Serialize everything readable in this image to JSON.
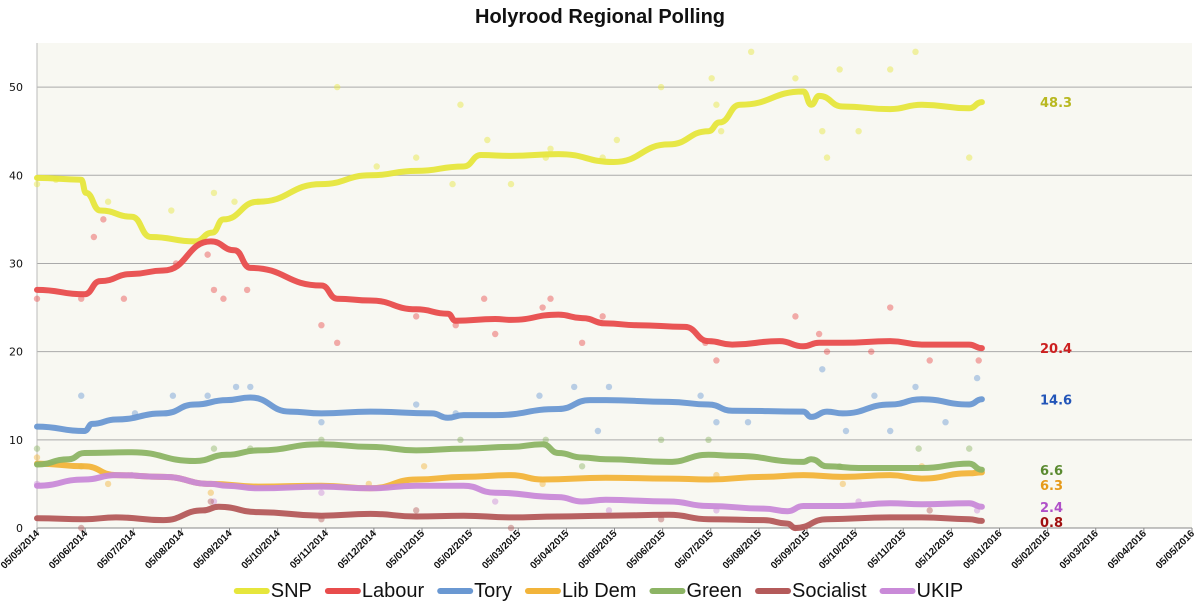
{
  "chart_data": {
    "type": "line",
    "title": "Holyrood Regional Polling",
    "xlabel": "",
    "ylabel": "",
    "ylim": [
      0,
      55
    ],
    "yticks": [
      0,
      10,
      20,
      30,
      40,
      50
    ],
    "xlim": [
      "05/05/2014",
      "05/05/2016"
    ],
    "x_tick_labels": [
      "05/05/2014",
      "05/06/2014",
      "05/07/2014",
      "05/08/2014",
      "05/09/2014",
      "05/10/2014",
      "05/11/2014",
      "05/12/2014",
      "05/01/2015",
      "05/02/2015",
      "05/03/2015",
      "05/04/2015",
      "05/05/2015",
      "05/06/2015",
      "05/07/2015",
      "05/08/2015",
      "05/09/2015",
      "05/10/2015",
      "05/11/2015",
      "05/12/2015",
      "05/01/2016",
      "05/02/2016",
      "05/03/2016",
      "05/04/2016",
      "05/05/2016"
    ],
    "grid": "horizontal",
    "legend_position": "bottom",
    "background": "#f8f8f2",
    "series": [
      {
        "name": "SNP",
        "color": "#e6e63c",
        "end_label": "48.3",
        "end_label_color": "#b8b820",
        "x": [
          "05/05/2014",
          "05/06/2014",
          "05/06/2014",
          "05/07/2014",
          "05/08/2014",
          "05/08/2014",
          "05/09/2014",
          "05/09/2014",
          "05/09/2014",
          "05/10/2014",
          "05/11/2014",
          "05/12/2014",
          "05/01/2015",
          "05/02/2015",
          "05/02/2015",
          "05/03/2015",
          "05/04/2015",
          "05/05/2015",
          "05/06/2015",
          "05/07/2015",
          "05/07/2015",
          "05/08/2015",
          "05/09/2015",
          "05/09/2015",
          "05/09/2015",
          "05/10/2015",
          "05/11/2015",
          "05/12/2015",
          "05/01/2016",
          "05/01/2016"
        ],
        "x_offset_days": [
          0,
          28,
          31,
          40,
          60,
          72,
          100,
          111,
          118,
          140,
          180,
          211,
          240,
          270,
          281,
          300,
          330,
          365,
          400,
          425,
          432,
          445,
          485,
          490,
          495,
          510,
          540,
          560,
          590,
          598
        ],
        "values": [
          39.7,
          39.5,
          38,
          36,
          35.3,
          33,
          32.5,
          33.5,
          35,
          37,
          39,
          40,
          40.5,
          41,
          42.3,
          42.2,
          42.4,
          41.5,
          43.5,
          45,
          46,
          48,
          49.5,
          48,
          49,
          47.8,
          47.5,
          48,
          47.6,
          48.3
        ]
      },
      {
        "name": "Labour",
        "color": "#e84c4c",
        "end_label": "20.4",
        "end_label_color": "#cc1f1f",
        "x_offset_days": [
          0,
          30,
          40,
          60,
          80,
          110,
          125,
          135,
          180,
          190,
          211,
          240,
          260,
          265,
          290,
          300,
          330,
          345,
          360,
          380,
          410,
          425,
          440,
          470,
          485,
          495,
          510,
          540,
          560,
          590,
          598
        ],
        "values": [
          27,
          26.5,
          28,
          28.8,
          29.2,
          32.5,
          31.5,
          29.5,
          27.5,
          26,
          25.8,
          24.8,
          24.3,
          23.5,
          23.7,
          23.6,
          24.2,
          23.8,
          23.2,
          23,
          22.8,
          21.2,
          20.8,
          21.2,
          20.6,
          21,
          21,
          21.2,
          20.8,
          20.8,
          20.4
        ]
      },
      {
        "name": "Tory",
        "color": "#6a98d2",
        "end_label": "14.6",
        "end_label_color": "#2255b8",
        "x_offset_days": [
          0,
          30,
          35,
          50,
          80,
          100,
          120,
          135,
          160,
          180,
          211,
          250,
          260,
          270,
          290,
          330,
          350,
          360,
          400,
          425,
          440,
          485,
          490,
          500,
          510,
          540,
          560,
          590,
          598
        ],
        "values": [
          11.5,
          11,
          11.8,
          12.3,
          13,
          14,
          14.5,
          14.8,
          13.2,
          13,
          13.2,
          13,
          12.5,
          12.8,
          12.8,
          13.5,
          14.5,
          14.5,
          14.3,
          14,
          13.3,
          13.2,
          12.6,
          13.2,
          13,
          14,
          14.6,
          14,
          14.6
        ]
      },
      {
        "name": "Lib Dem",
        "color": "#f2b43a",
        "end_label": "6.3",
        "end_label_color": "#e69a1a",
        "x_offset_days": [
          0,
          30,
          50,
          80,
          110,
          140,
          180,
          211,
          240,
          270,
          300,
          320,
          360,
          400,
          425,
          460,
          485,
          510,
          540,
          560,
          590,
          598
        ],
        "values": [
          7.3,
          7,
          6,
          5.8,
          5,
          4.7,
          4.8,
          4.5,
          5.5,
          5.8,
          6,
          5.5,
          5.7,
          5.6,
          5.5,
          5.8,
          6,
          5.8,
          6,
          5.6,
          6.2,
          6.3
        ]
      },
      {
        "name": "Green",
        "color": "#8cb464",
        "end_label": "6.6",
        "end_label_color": "#5a8a30",
        "x_offset_days": [
          0,
          20,
          30,
          60,
          100,
          120,
          140,
          180,
          211,
          240,
          270,
          300,
          320,
          330,
          345,
          360,
          400,
          425,
          440,
          485,
          490,
          500,
          520,
          560,
          590,
          598
        ],
        "values": [
          7.2,
          7.8,
          8.5,
          8.6,
          7.6,
          8.3,
          8.8,
          9.5,
          9.2,
          8.8,
          9,
          9.2,
          9.5,
          8.5,
          8,
          7.8,
          7.5,
          8.3,
          8.2,
          7.5,
          7.8,
          7,
          6.8,
          6.8,
          7.3,
          6.6
        ]
      },
      {
        "name": "Socialist",
        "color": "#b45a5a",
        "end_label": "0.8",
        "end_label_color": "#a01010",
        "x_offset_days": [
          0,
          30,
          50,
          80,
          105,
          115,
          140,
          180,
          211,
          240,
          270,
          300,
          330,
          360,
          400,
          425,
          460,
          475,
          480,
          500,
          540,
          560,
          590,
          598
        ],
        "values": [
          1.1,
          1,
          1.2,
          0.9,
          2,
          2.4,
          1.8,
          1.4,
          1.6,
          1.3,
          1.4,
          1.2,
          1.3,
          1.4,
          1.5,
          1,
          0.9,
          0.5,
          0,
          1,
          1.2,
          1.2,
          1,
          0.8
        ]
      },
      {
        "name": "UKIP",
        "color": "#c98ad8",
        "end_label": "2.4",
        "end_label_color": "#b050c8",
        "x_offset_days": [
          0,
          30,
          50,
          80,
          110,
          120,
          140,
          180,
          211,
          240,
          270,
          290,
          330,
          345,
          360,
          400,
          425,
          460,
          475,
          485,
          510,
          540,
          560,
          590,
          598
        ],
        "values": [
          4.8,
          5.5,
          6,
          5.8,
          5,
          4.8,
          4.5,
          4.7,
          4.5,
          4.8,
          4.8,
          4,
          3.5,
          3,
          3.2,
          3,
          2.5,
          2.2,
          1.9,
          2.5,
          2.5,
          2.8,
          2.7,
          2.8,
          2.4
        ]
      }
    ],
    "scatter_points": [
      {
        "series": "SNP",
        "d": 0,
        "v": 39
      },
      {
        "series": "SNP",
        "d": 12,
        "v": 39.5
      },
      {
        "series": "SNP",
        "d": 45,
        "v": 37
      },
      {
        "series": "SNP",
        "d": 85,
        "v": 36
      },
      {
        "series": "SNP",
        "d": 112,
        "v": 38
      },
      {
        "series": "SNP",
        "d": 125,
        "v": 37
      },
      {
        "series": "SNP",
        "d": 140,
        "v": 37
      },
      {
        "series": "SNP",
        "d": 190,
        "v": 50
      },
      {
        "series": "SNP",
        "d": 215,
        "v": 41
      },
      {
        "series": "SNP",
        "d": 240,
        "v": 42
      },
      {
        "series": "SNP",
        "d": 263,
        "v": 39
      },
      {
        "series": "SNP",
        "d": 268,
        "v": 48
      },
      {
        "series": "SNP",
        "d": 285,
        "v": 44
      },
      {
        "series": "SNP",
        "d": 300,
        "v": 39
      },
      {
        "series": "SNP",
        "d": 322,
        "v": 42
      },
      {
        "series": "SNP",
        "d": 325,
        "v": 43
      },
      {
        "series": "SNP",
        "d": 358,
        "v": 42
      },
      {
        "series": "SNP",
        "d": 367,
        "v": 44
      },
      {
        "series": "SNP",
        "d": 395,
        "v": 50
      },
      {
        "series": "SNP",
        "d": 427,
        "v": 51
      },
      {
        "series": "SNP",
        "d": 430,
        "v": 48
      },
      {
        "series": "SNP",
        "d": 433,
        "v": 45
      },
      {
        "series": "SNP",
        "d": 452,
        "v": 54
      },
      {
        "series": "SNP",
        "d": 480,
        "v": 51
      },
      {
        "series": "SNP",
        "d": 497,
        "v": 45
      },
      {
        "series": "SNP",
        "d": 500,
        "v": 42
      },
      {
        "series": "SNP",
        "d": 508,
        "v": 52
      },
      {
        "series": "SNP",
        "d": 520,
        "v": 45
      },
      {
        "series": "SNP",
        "d": 540,
        "v": 52
      },
      {
        "series": "SNP",
        "d": 556,
        "v": 54
      },
      {
        "series": "SNP",
        "d": 590,
        "v": 42
      },
      {
        "series": "Labour",
        "d": 0,
        "v": 26
      },
      {
        "series": "Labour",
        "d": 28,
        "v": 26
      },
      {
        "series": "Labour",
        "d": 36,
        "v": 33
      },
      {
        "series": "Labour",
        "d": 42,
        "v": 35
      },
      {
        "series": "Labour",
        "d": 55,
        "v": 26
      },
      {
        "series": "Labour",
        "d": 88,
        "v": 30
      },
      {
        "series": "Labour",
        "d": 108,
        "v": 31
      },
      {
        "series": "Labour",
        "d": 112,
        "v": 27
      },
      {
        "series": "Labour",
        "d": 118,
        "v": 26
      },
      {
        "series": "Labour",
        "d": 133,
        "v": 27
      },
      {
        "series": "Labour",
        "d": 180,
        "v": 23
      },
      {
        "series": "Labour",
        "d": 190,
        "v": 21
      },
      {
        "series": "Labour",
        "d": 240,
        "v": 24
      },
      {
        "series": "Labour",
        "d": 265,
        "v": 23
      },
      {
        "series": "Labour",
        "d": 283,
        "v": 26
      },
      {
        "series": "Labour",
        "d": 290,
        "v": 22
      },
      {
        "series": "Labour",
        "d": 320,
        "v": 25
      },
      {
        "series": "Labour",
        "d": 325,
        "v": 26
      },
      {
        "series": "Labour",
        "d": 345,
        "v": 21
      },
      {
        "series": "Labour",
        "d": 358,
        "v": 24
      },
      {
        "series": "Labour",
        "d": 423,
        "v": 21
      },
      {
        "series": "Labour",
        "d": 430,
        "v": 19
      },
      {
        "series": "Labour",
        "d": 480,
        "v": 24
      },
      {
        "series": "Labour",
        "d": 495,
        "v": 22
      },
      {
        "series": "Labour",
        "d": 500,
        "v": 20
      },
      {
        "series": "Labour",
        "d": 528,
        "v": 20
      },
      {
        "series": "Labour",
        "d": 540,
        "v": 25
      },
      {
        "series": "Labour",
        "d": 565,
        "v": 19
      },
      {
        "series": "Labour",
        "d": 596,
        "v": 19
      },
      {
        "series": "Tory",
        "d": 28,
        "v": 15
      },
      {
        "series": "Tory",
        "d": 62,
        "v": 13
      },
      {
        "series": "Tory",
        "d": 86,
        "v": 15
      },
      {
        "series": "Tory",
        "d": 108,
        "v": 15
      },
      {
        "series": "Tory",
        "d": 126,
        "v": 16
      },
      {
        "series": "Tory",
        "d": 135,
        "v": 16
      },
      {
        "series": "Tory",
        "d": 180,
        "v": 12
      },
      {
        "series": "Tory",
        "d": 240,
        "v": 14
      },
      {
        "series": "Tory",
        "d": 265,
        "v": 13
      },
      {
        "series": "Tory",
        "d": 318,
        "v": 15
      },
      {
        "series": "Tory",
        "d": 340,
        "v": 16
      },
      {
        "series": "Tory",
        "d": 355,
        "v": 11
      },
      {
        "series": "Tory",
        "d": 362,
        "v": 16
      },
      {
        "series": "Tory",
        "d": 420,
        "v": 15
      },
      {
        "series": "Tory",
        "d": 430,
        "v": 12
      },
      {
        "series": "Tory",
        "d": 450,
        "v": 12
      },
      {
        "series": "Tory",
        "d": 497,
        "v": 18
      },
      {
        "series": "Tory",
        "d": 512,
        "v": 11
      },
      {
        "series": "Tory",
        "d": 530,
        "v": 15
      },
      {
        "series": "Tory",
        "d": 540,
        "v": 11
      },
      {
        "series": "Tory",
        "d": 556,
        "v": 16
      },
      {
        "series": "Tory",
        "d": 575,
        "v": 12
      },
      {
        "series": "Tory",
        "d": 595,
        "v": 17
      },
      {
        "series": "Green",
        "d": 0,
        "v": 9
      },
      {
        "series": "Green",
        "d": 28,
        "v": 7
      },
      {
        "series": "Green",
        "d": 112,
        "v": 9
      },
      {
        "series": "Green",
        "d": 135,
        "v": 9
      },
      {
        "series": "Green",
        "d": 180,
        "v": 10
      },
      {
        "series": "Green",
        "d": 268,
        "v": 10
      },
      {
        "series": "Green",
        "d": 322,
        "v": 10
      },
      {
        "series": "Green",
        "d": 345,
        "v": 7
      },
      {
        "series": "Green",
        "d": 395,
        "v": 10
      },
      {
        "series": "Green",
        "d": 425,
        "v": 10
      },
      {
        "series": "Green",
        "d": 508,
        "v": 7
      },
      {
        "series": "Green",
        "d": 558,
        "v": 9
      },
      {
        "series": "Green",
        "d": 590,
        "v": 9
      },
      {
        "series": "Lib Dem",
        "d": 0,
        "v": 8
      },
      {
        "series": "Lib Dem",
        "d": 45,
        "v": 5
      },
      {
        "series": "Lib Dem",
        "d": 110,
        "v": 4
      },
      {
        "series": "Lib Dem",
        "d": 210,
        "v": 5
      },
      {
        "series": "Lib Dem",
        "d": 245,
        "v": 7
      },
      {
        "series": "Lib Dem",
        "d": 320,
        "v": 5
      },
      {
        "series": "Lib Dem",
        "d": 430,
        "v": 6
      },
      {
        "series": "Lib Dem",
        "d": 510,
        "v": 5
      },
      {
        "series": "Lib Dem",
        "d": 560,
        "v": 7
      },
      {
        "series": "UKIP",
        "d": 0,
        "v": 5
      },
      {
        "series": "UKIP",
        "d": 60,
        "v": 6
      },
      {
        "series": "UKIP",
        "d": 112,
        "v": 3
      },
      {
        "series": "UKIP",
        "d": 180,
        "v": 4
      },
      {
        "series": "UKIP",
        "d": 290,
        "v": 3
      },
      {
        "series": "UKIP",
        "d": 362,
        "v": 2
      },
      {
        "series": "UKIP",
        "d": 430,
        "v": 2
      },
      {
        "series": "UKIP",
        "d": 520,
        "v": 3
      },
      {
        "series": "UKIP",
        "d": 595,
        "v": 2
      },
      {
        "series": "Socialist",
        "d": 28,
        "v": 0
      },
      {
        "series": "Socialist",
        "d": 110,
        "v": 3
      },
      {
        "series": "Socialist",
        "d": 180,
        "v": 1
      },
      {
        "series": "Socialist",
        "d": 240,
        "v": 2
      },
      {
        "series": "Socialist",
        "d": 300,
        "v": 0
      },
      {
        "series": "Socialist",
        "d": 395,
        "v": 1
      },
      {
        "series": "Socialist",
        "d": 480,
        "v": 0
      },
      {
        "series": "Socialist",
        "d": 565,
        "v": 2
      }
    ]
  }
}
